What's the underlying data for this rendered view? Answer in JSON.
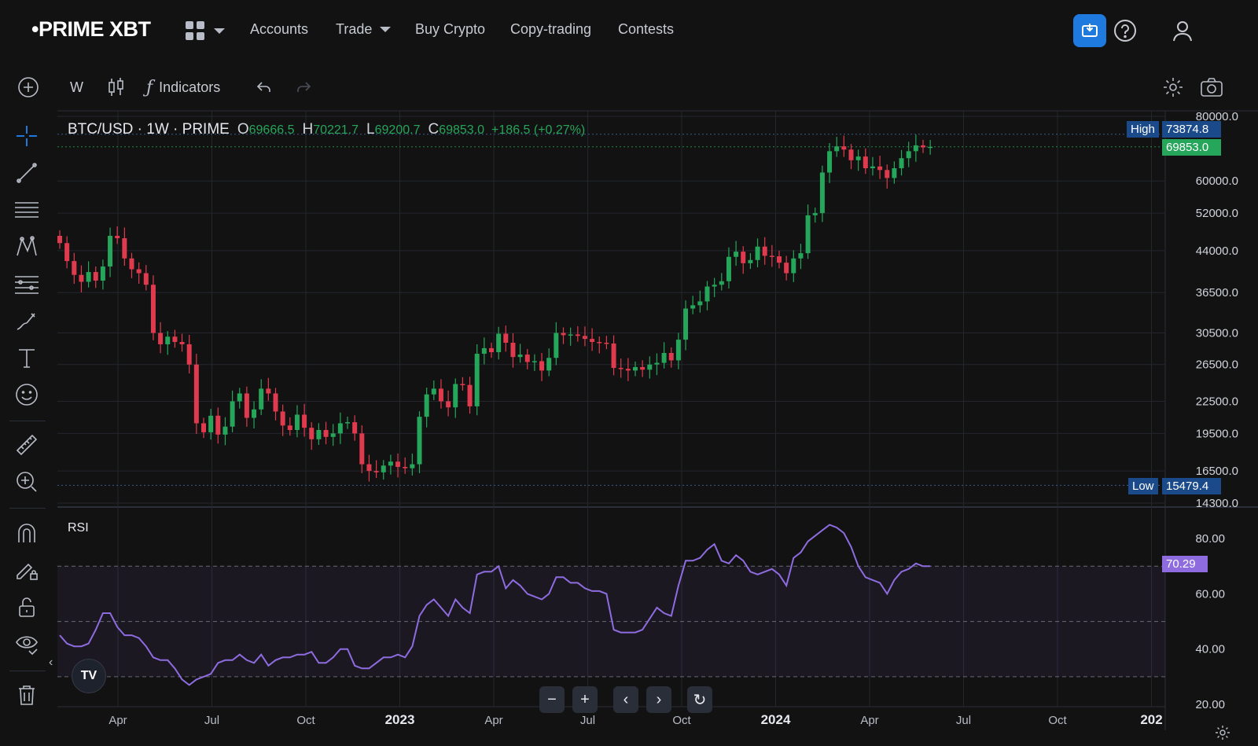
{
  "nav": {
    "logo": "•PRIME XBT",
    "items": [
      "Accounts",
      "Trade",
      "Buy Crypto",
      "Copy-trading",
      "Contests"
    ]
  },
  "toolbar": {
    "interval": "W",
    "indicators_label": "Indicators"
  },
  "header": {
    "symbol": "BTC/USD · 1W · PRIME",
    "open_label": "O",
    "open": "69666.5",
    "high_label": "H",
    "high": "70221.7",
    "low_label": "L",
    "low": "69200.7",
    "close_label": "C",
    "close": "69853.0",
    "change": "+186.5 (+0.27%)"
  },
  "tags": {
    "high_label": "High",
    "high_value": "73874.8",
    "last_value": "69853.0",
    "low_label": "Low",
    "low_value": "15479.4",
    "rsi_value": "70.29"
  },
  "rsi_label": "RSI",
  "colors": {
    "up": "#26a65b",
    "down": "#e03a4e",
    "rsi": "#8e6ce0",
    "accent": "#1f7ae0"
  },
  "chart_data": [
    {
      "type": "candlestick",
      "title": "BTC/USD · 1W · PRIME",
      "scale": "log",
      "x_ticks": [
        "Apr",
        "Jul",
        "Oct",
        "2023",
        "Apr",
        "Jul",
        "Oct",
        "2024",
        "Apr",
        "Jul",
        "Oct",
        "202"
      ],
      "y_ticks": [
        "80000.0",
        "60000.0",
        "52000.0",
        "44000.0",
        "36500.0",
        "30500.0",
        "26500.0",
        "22500.0",
        "19500.0",
        "16500.0",
        "14300.0"
      ],
      "ylim": [
        14300,
        80000
      ],
      "series": [
        {
          "name": "BTC/USD",
          "close": [
            45500,
            42000,
            39500,
            38300,
            40000,
            38500,
            41000,
            47000,
            46500,
            42500,
            40500,
            39800,
            37800,
            30500,
            29000,
            30000,
            29300,
            29000,
            26500,
            20400,
            19600,
            21100,
            19400,
            20100,
            22500,
            23300,
            20900,
            21700,
            23800,
            23300,
            21500,
            20200,
            19800,
            21200,
            20000,
            19000,
            19800,
            19200,
            19500,
            20400,
            20500,
            19500,
            17000,
            16500,
            16400,
            16900,
            17200,
            16800,
            16700,
            17000,
            21000,
            23200,
            23800,
            22500,
            21900,
            24300,
            24200,
            22000,
            27800,
            28500,
            28000,
            30400,
            29200,
            27400,
            27700,
            26800,
            26900,
            25800,
            27300,
            30500,
            30200,
            30300,
            30100,
            29700,
            29300,
            29200,
            29100,
            26100,
            26000,
            25800,
            26200,
            25900,
            26500,
            26700,
            27900,
            27000,
            29600,
            34000,
            34500,
            35100,
            37500,
            37800,
            38400,
            42800,
            43800,
            41600,
            42200,
            44800,
            43000,
            42900,
            41700,
            39800,
            42500,
            43500,
            51500,
            52000,
            62300,
            68500,
            70000,
            69000,
            65800,
            66900,
            63500,
            64000,
            63000,
            60800,
            63500,
            66400,
            68500,
            70300,
            69666,
            69853
          ]
        }
      ]
    },
    {
      "type": "line",
      "title": "RSI",
      "y_ticks": [
        "80.00",
        "60.00",
        "40.00",
        "20.00"
      ],
      "ylim": [
        20,
        90
      ],
      "bands": [
        30,
        50,
        70
      ],
      "series": [
        {
          "name": "RSI",
          "values": [
            45,
            42,
            41,
            41,
            42,
            47,
            53,
            53,
            48,
            45,
            45,
            44,
            41,
            37,
            36,
            36,
            33,
            29,
            27,
            29,
            30,
            31,
            35,
            36,
            36,
            38,
            36,
            35,
            38,
            34,
            36,
            37,
            37,
            38,
            38,
            39,
            35,
            35,
            37,
            40,
            40,
            34,
            33,
            33,
            35,
            37,
            37,
            38,
            37,
            41,
            52,
            56,
            58,
            55,
            52,
            58,
            55,
            53,
            67,
            68,
            68,
            70,
            62,
            65,
            63,
            60,
            59,
            58,
            60,
            66,
            66,
            64,
            64,
            62,
            61,
            61,
            60,
            47,
            46,
            46,
            46,
            47,
            51,
            55,
            53,
            52,
            63,
            72,
            72,
            73,
            76,
            78,
            72,
            71,
            74,
            72,
            68,
            67,
            68,
            69,
            67,
            63,
            73,
            75,
            79,
            81,
            83,
            85,
            84,
            82,
            77,
            70,
            66,
            65,
            64,
            60,
            65,
            68,
            69,
            71,
            70,
            70
          ]
        }
      ]
    }
  ]
}
